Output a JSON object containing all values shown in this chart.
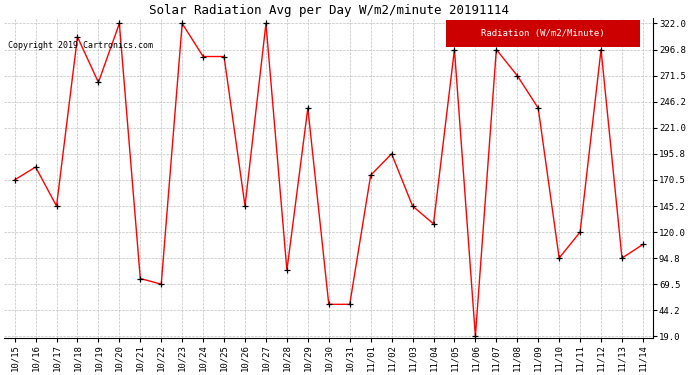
{
  "title": "Solar Radiation Avg per Day W/m2/minute 20191114",
  "copyright": "Copyright 2019 Cartronics.com",
  "legend_label": "Radiation (W/m2/Minute)",
  "dates": [
    "10/15",
    "10/16",
    "10/17",
    "10/18",
    "10/19",
    "10/20",
    "10/21",
    "10/22",
    "10/23",
    "10/24",
    "10/25",
    "10/26",
    "10/27",
    "10/28",
    "10/29",
    "10/30",
    "10/31",
    "11/01",
    "11/02",
    "11/03",
    "11/04",
    "11/05",
    "11/06",
    "11/07",
    "11/08",
    "11/09",
    "11/10",
    "11/11",
    "11/12",
    "11/13",
    "11/14"
  ],
  "values": [
    170.5,
    183.0,
    145.2,
    309.0,
    265.0,
    322.0,
    75.0,
    69.5,
    322.0,
    290.0,
    290.0,
    145.2,
    322.0,
    83.0,
    240.0,
    50.0,
    50.0,
    175.0,
    195.8,
    145.2,
    128.0,
    296.8,
    19.0,
    296.8,
    271.5,
    240.0,
    94.8,
    120.0,
    296.8,
    94.8,
    108.0
  ],
  "line_color": "#ff0000",
  "marker_color": "#000000",
  "background_color": "#ffffff",
  "plot_bg_color": "#ffffff",
  "grid_color": "#b0b0b0",
  "yticks": [
    19.0,
    44.2,
    69.5,
    94.8,
    120.0,
    145.2,
    170.5,
    195.8,
    221.0,
    246.2,
    271.5,
    296.8,
    322.0
  ],
  "ymin": 19.0,
  "ymax": 322.0,
  "legend_bg": "#cc0000",
  "legend_text_color": "#ffffff",
  "title_fontsize": 9,
  "copyright_fontsize": 6,
  "tick_fontsize": 6.5,
  "legend_fontsize": 6.5
}
